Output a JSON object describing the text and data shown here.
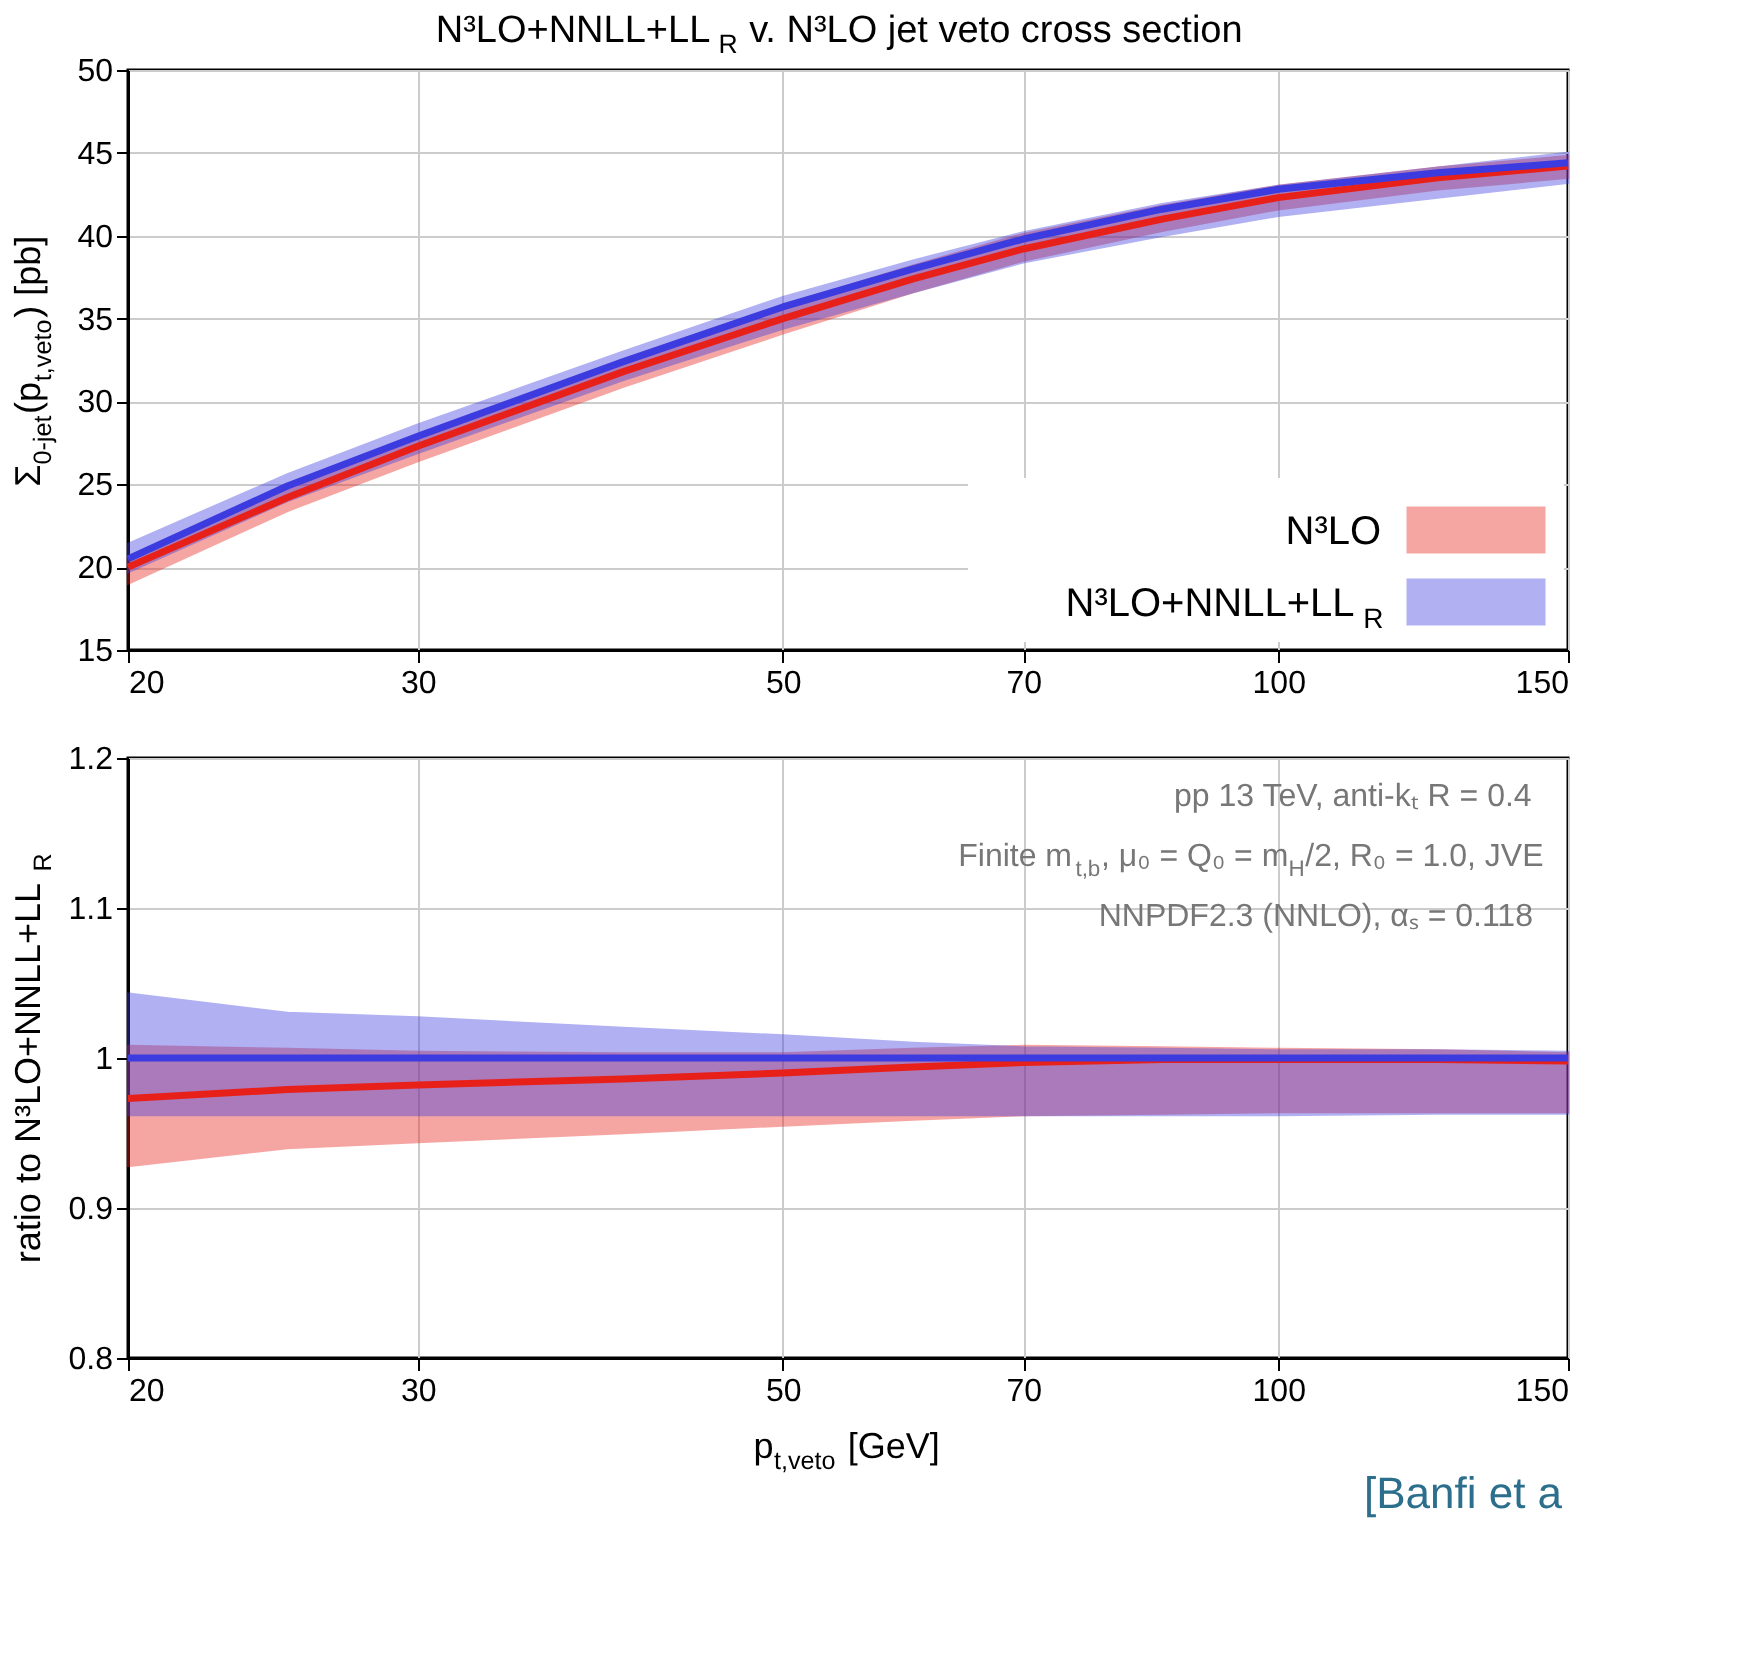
{
  "chart_data": [
    {
      "type": "line",
      "title": "N³LO+NNLL+LL$_{R}$ v. N³LO jet veto cross section",
      "ylabel": "Σ$_{0-jet}$(p$_{t,veto}$) [pb]",
      "log": "x",
      "xlim": [
        20,
        150
      ],
      "xticks": [
        20,
        30,
        50,
        70,
        100,
        150
      ],
      "ylim": [
        15,
        50
      ],
      "yticks": [
        15,
        20,
        25,
        30,
        35,
        40,
        45,
        50
      ],
      "grid": true,
      "legend": "bottom right",
      "x": [
        20,
        25,
        30,
        40,
        50,
        60,
        70,
        85,
        100,
        125,
        150
      ],
      "series": [
        {
          "name": "N³LO",
          "color": "#e8201a",
          "values": [
            20.0,
            24.2,
            27.3,
            31.8,
            35.0,
            37.4,
            39.2,
            41.0,
            42.3,
            43.5,
            44.2
          ],
          "lower": [
            19.0,
            23.4,
            26.4,
            30.9,
            34.1,
            36.6,
            38.5,
            40.3,
            41.6,
            42.8,
            43.5
          ],
          "upper": [
            20.6,
            25.0,
            28.0,
            32.4,
            35.8,
            38.2,
            40.1,
            41.8,
            43.0,
            44.1,
            44.8
          ]
        },
        {
          "name": "N³LO+NNLL+LL$_{R}$",
          "color": "#3b3bdf",
          "values": [
            20.5,
            24.9,
            27.9,
            32.4,
            35.7,
            38.0,
            39.8,
            41.6,
            42.8,
            43.8,
            44.4
          ],
          "lower": [
            19.7,
            24.0,
            26.9,
            31.3,
            34.4,
            36.6,
            38.4,
            40.0,
            41.2,
            42.3,
            43.2
          ],
          "upper": [
            21.4,
            25.6,
            28.6,
            33.0,
            36.3,
            38.5,
            40.2,
            41.9,
            43.0,
            44.1,
            45.0
          ]
        }
      ]
    },
    {
      "type": "line",
      "xlabel": "p$_{t,veto}$ [GeV]",
      "ylabel": "ratio to N³LO+NNLL+LL$_{R}$",
      "log": "x",
      "xlim": [
        20,
        150
      ],
      "xticks": [
        20,
        30,
        50,
        70,
        100,
        150
      ],
      "ylim": [
        0.8,
        1.2
      ],
      "yticks": [
        0.8,
        0.9,
        1,
        1.1,
        1.2
      ],
      "grid": true,
      "x": [
        20,
        25,
        30,
        40,
        50,
        60,
        70,
        85,
        100,
        125,
        150
      ],
      "series": [
        {
          "color": "#e8201a",
          "values": [
            0.973,
            0.979,
            0.982,
            0.986,
            0.99,
            0.994,
            0.997,
            0.999,
            0.999,
            0.999,
            0.998
          ],
          "lower": [
            0.928,
            0.94,
            0.944,
            0.95,
            0.955,
            0.959,
            0.962,
            0.963,
            0.964,
            0.964,
            0.964
          ],
          "upper": [
            1.008,
            1.006,
            1.004,
            1.003,
            1.003,
            1.006,
            1.008,
            1.007,
            1.006,
            1.005,
            1.003
          ]
        },
        {
          "color": "#3b3bdf",
          "values": [
            1,
            1,
            1,
            1,
            1,
            1,
            1,
            1,
            1,
            1,
            1
          ],
          "lower": [
            0.962,
            0.962,
            0.962,
            0.962,
            0.962,
            0.962,
            0.962,
            0.962,
            0.962,
            0.963,
            0.963
          ],
          "upper": [
            1.043,
            1.03,
            1.027,
            1.02,
            1.015,
            1.01,
            1.007,
            1.006,
            1.005,
            1.005,
            1.004
          ]
        }
      ],
      "annotations": [
        "pp 13 TeV, anti-kₜ R = 0.4",
        "Finite m$_{t,b}$, μ₀ = Q₀ = m$_{H}$/2, R₀ = 1.0, JVE",
        "NNPDF2.3 (NNLO), αₛ = 0.118",
        "[Banfi et a"
      ]
    }
  ]
}
